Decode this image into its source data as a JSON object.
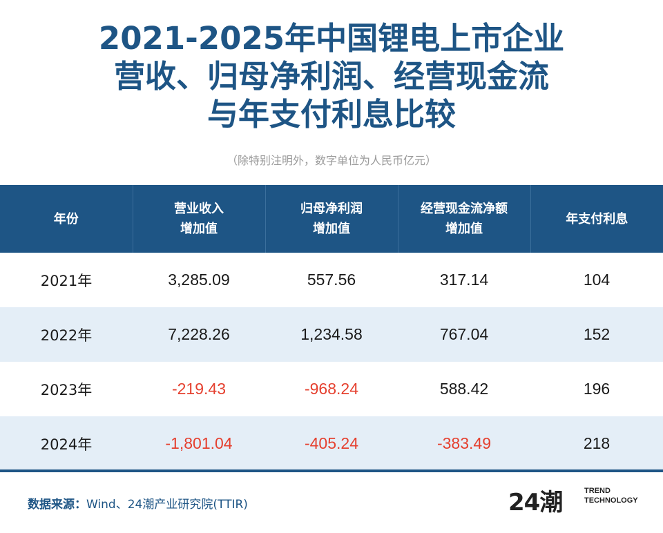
{
  "title": {
    "line1": "2021-2025年中国锂电上市企业",
    "line2": "营收、归母净利润、经营现金流",
    "line3": "与年支付利息比较"
  },
  "subtitle": "（除特别注明外，数字单位为人民币亿元）",
  "table": {
    "headers": [
      {
        "line1": "年份",
        "line2": ""
      },
      {
        "line1": "营业收入",
        "line2": "增加值"
      },
      {
        "line1": "归母净利润",
        "line2": "增加值"
      },
      {
        "line1": "经营现金流净额",
        "line2": "增加值"
      },
      {
        "line1": "年支付利息",
        "line2": ""
      }
    ],
    "rows": [
      {
        "year": "2021年",
        "revenue": "3,285.09",
        "net_profit": "557.56",
        "cash_flow": "317.14",
        "interest": "104"
      },
      {
        "year": "2022年",
        "revenue": "7,228.26",
        "net_profit": "1,234.58",
        "cash_flow": "767.04",
        "interest": "152"
      },
      {
        "year": "2023年",
        "revenue": "-219.43",
        "net_profit": "-968.24",
        "cash_flow": "588.42",
        "interest": "196"
      },
      {
        "year": "2024年",
        "revenue": "-1,801.04",
        "net_profit": "-405.24",
        "cash_flow": "-383.49",
        "interest": "218"
      }
    ]
  },
  "source": {
    "label": "数据来源：",
    "text": "Wind、24潮产业研究院(TTIR)"
  },
  "logo": {
    "mark": "24潮",
    "text_line1": "TREND",
    "text_line2": "TECHNOLOGY"
  },
  "colors": {
    "primary": "#1e5585",
    "negative": "#e5402f",
    "stripe": "#e4eef7"
  }
}
